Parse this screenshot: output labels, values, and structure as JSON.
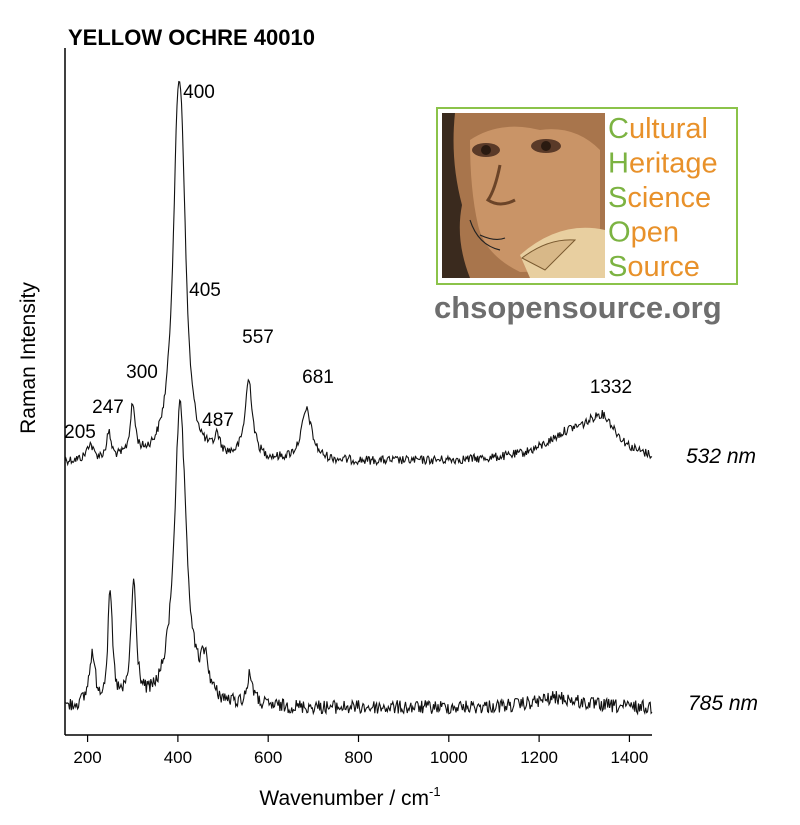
{
  "chart_data": {
    "type": "line",
    "title": "YELLOW OCHRE 40010",
    "xlabel": "Wavenumber / cm",
    "xlabel_sup": "-1",
    "ylabel": "Raman Intensity",
    "xlim": [
      150,
      1450
    ],
    "xticks": [
      200,
      400,
      600,
      800,
      1000,
      1200,
      1400
    ],
    "grid": false,
    "series": [
      {
        "name": "532 nm",
        "peaks": [
          {
            "x": 205,
            "label": "205"
          },
          {
            "x": 247,
            "label": "247"
          },
          {
            "x": 300,
            "label": "300"
          },
          {
            "x": 400,
            "label": "400"
          },
          {
            "x": 405,
            "label": "405"
          },
          {
            "x": 487,
            "label": "487"
          },
          {
            "x": 557,
            "label": "557"
          },
          {
            "x": 681,
            "label": "681"
          },
          {
            "x": 1332,
            "label": "1332"
          }
        ]
      },
      {
        "name": "785 nm",
        "peaks": []
      }
    ]
  },
  "logo": {
    "words": [
      "Cultural",
      "Heritage",
      "Science",
      "Open",
      "Source"
    ],
    "url": "chsopensource.org",
    "initial_color": "#7cb342",
    "rest_color": "#e8912a",
    "border_color": "#8bc34a"
  }
}
